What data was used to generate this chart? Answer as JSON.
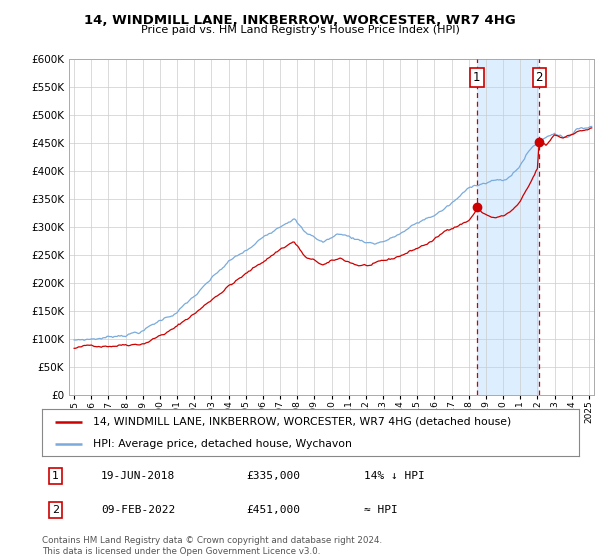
{
  "title": "14, WINDMILL LANE, INKBERROW, WORCESTER, WR7 4HG",
  "subtitle": "Price paid vs. HM Land Registry's House Price Index (HPI)",
  "ylim": [
    0,
    600000
  ],
  "yticks": [
    0,
    50000,
    100000,
    150000,
    200000,
    250000,
    300000,
    350000,
    400000,
    450000,
    500000,
    550000,
    600000
  ],
  "transaction1": {
    "date": 2018.47,
    "price": 335000,
    "label": "1"
  },
  "transaction2": {
    "date": 2022.11,
    "price": 451000,
    "label": "2"
  },
  "legend_line1": "14, WINDMILL LANE, INKBERROW, WORCESTER, WR7 4HG (detached house)",
  "legend_line2": "HPI: Average price, detached house, Wychavon",
  "note1_label": "1",
  "note1_date": "19-JUN-2018",
  "note1_price": "£335,000",
  "note1_rel": "14% ↓ HPI",
  "note2_label": "2",
  "note2_date": "09-FEB-2022",
  "note2_price": "£451,000",
  "note2_rel": "≈ HPI",
  "footer": "Contains HM Land Registry data © Crown copyright and database right 2024.\nThis data is licensed under the Open Government Licence v3.0.",
  "price_color": "#cc0000",
  "hpi_color": "#7aabdc",
  "shade_color": "#ddeeff",
  "vline_color": "#cc0000",
  "grid_color": "#cccccc"
}
